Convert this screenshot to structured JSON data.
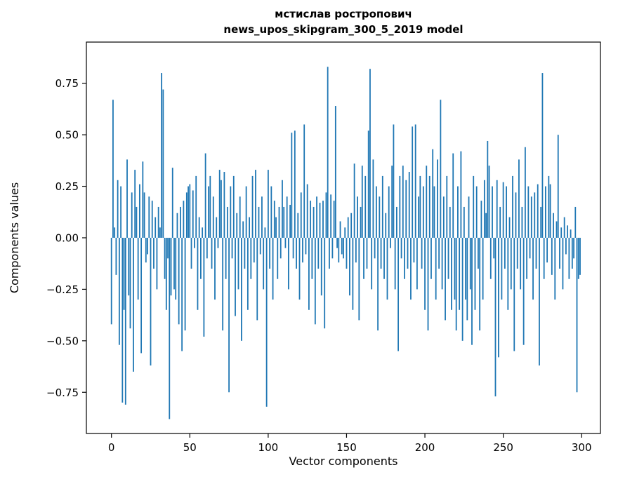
{
  "chart_data": {
    "type": "bar",
    "title": "мстислав ростропович\nnews_upos_skipgram_300_5_2019 model",
    "title_line1": "мстислав ростропович",
    "title_line2": "news_upos_skipgram_300_5_2019 model",
    "xlabel": "Vector components",
    "ylabel": "Components values",
    "bar_color": "#1f77b4",
    "grid": false,
    "legend_position": "none",
    "xlim": [
      -16,
      312
    ],
    "ylim": [
      -0.95,
      0.95
    ],
    "xticks": [
      0,
      50,
      100,
      150,
      200,
      250,
      300
    ],
    "xtick_labels": [
      "0",
      "50",
      "100",
      "150",
      "200",
      "250",
      "300"
    ],
    "yticks": [
      -0.75,
      -0.5,
      -0.25,
      0,
      0.25,
      0.5,
      0.75
    ],
    "ytick_labels": [
      "−0.75",
      "−0.50",
      "−0.25",
      "0.00",
      "0.25",
      "0.50",
      "0.75"
    ],
    "values": [
      -0.42,
      0.67,
      0.05,
      -0.18,
      0.28,
      -0.52,
      0.25,
      -0.8,
      -0.35,
      -0.81,
      0.38,
      -0.28,
      -0.44,
      0.22,
      -0.65,
      0.33,
      0.15,
      -0.3,
      0.26,
      -0.56,
      0.37,
      0.22,
      -0.12,
      -0.08,
      0.2,
      -0.62,
      0.18,
      -0.15,
      0.1,
      -0.25,
      0.15,
      0.05,
      0.8,
      0.72,
      -0.2,
      -0.35,
      -0.1,
      -0.88,
      -0.28,
      0.34,
      -0.25,
      -0.3,
      0.12,
      -0.42,
      0.15,
      -0.55,
      0.18,
      -0.45,
      0.22,
      0.25,
      0.26,
      -0.15,
      0.23,
      -0.05,
      0.3,
      -0.35,
      0.1,
      -0.2,
      0.05,
      -0.48,
      0.41,
      -0.1,
      0.25,
      0.3,
      -0.15,
      0.2,
      -0.3,
      0.1,
      -0.05,
      0.33,
      0.28,
      -0.45,
      0.32,
      -0.2,
      0.15,
      -0.75,
      0.25,
      -0.1,
      0.3,
      -0.38,
      0.12,
      -0.25,
      0.2,
      -0.5,
      0.08,
      -0.15,
      0.25,
      -0.35,
      0.1,
      -0.2,
      0.3,
      -0.12,
      0.33,
      -0.4,
      0.15,
      -0.08,
      0.2,
      -0.25,
      0.05,
      -0.82,
      0.33,
      -0.15,
      0.25,
      -0.3,
      0.18,
      0.1,
      -0.2,
      0.15,
      -0.1,
      0.28,
      0.15,
      -0.05,
      0.2,
      -0.25,
      0.16,
      0.51,
      -0.1,
      0.52,
      -0.15,
      0.12,
      -0.3,
      0.22,
      -0.12,
      0.55,
      -0.08,
      0.26,
      -0.35,
      0.18,
      -0.2,
      0.15,
      -0.42,
      0.2,
      -0.15,
      0.17,
      -0.28,
      0.18,
      -0.44,
      0.22,
      0.83,
      -0.15,
      0.21,
      -0.1,
      0.18,
      0.64,
      -0.05,
      -0.12,
      0.08,
      -0.08,
      -0.1,
      0.05,
      -0.15,
      0.1,
      -0.28,
      0.12,
      -0.35,
      0.36,
      -0.12,
      0.2,
      -0.4,
      0.15,
      0.35,
      -0.2,
      0.3,
      -0.15,
      0.52,
      0.82,
      -0.25,
      0.38,
      -0.1,
      0.25,
      -0.45,
      0.2,
      -0.15,
      0.3,
      -0.2,
      0.12,
      -0.3,
      0.25,
      -0.05,
      0.35,
      0.55,
      -0.25,
      0.15,
      -0.55,
      0.3,
      -0.1,
      0.35,
      -0.2,
      0.28,
      -0.15,
      0.32,
      -0.3,
      0.54,
      -0.12,
      0.55,
      -0.25,
      0.2,
      0.3,
      -0.15,
      0.25,
      -0.35,
      0.35,
      -0.45,
      0.3,
      -0.2,
      0.43,
      0.25,
      -0.3,
      0.38,
      -0.15,
      0.67,
      -0.25,
      0.2,
      -0.4,
      0.3,
      -0.2,
      0.15,
      -0.35,
      0.41,
      -0.3,
      -0.45,
      0.25,
      -0.35,
      0.42,
      -0.5,
      0.15,
      -0.3,
      -0.4,
      0.2,
      -0.25,
      -0.52,
      0.3,
      -0.35,
      0.25,
      -0.15,
      -0.45,
      0.18,
      -0.3,
      0.28,
      0.12,
      0.47,
      0.35,
      -0.2,
      0.25,
      -0.1,
      -0.77,
      0.28,
      -0.58,
      0.15,
      -0.3,
      0.27,
      -0.15,
      0.25,
      -0.35,
      0.1,
      -0.25,
      0.3,
      -0.55,
      0.22,
      -0.15,
      0.38,
      -0.25,
      0.15,
      -0.52,
      0.44,
      -0.2,
      0.25,
      -0.1,
      0.2,
      -0.3,
      0.22,
      -0.15,
      0.26,
      -0.62,
      0.15,
      0.8,
      -0.2,
      0.25,
      -0.12,
      0.3,
      0.26,
      -0.18,
      0.12,
      -0.3,
      0.08,
      0.5,
      -0.15,
      0.05,
      -0.25,
      0.1,
      -0.08,
      0.06,
      -0.2,
      0.04,
      -0.15,
      -0.1,
      0.15,
      -0.75,
      -0.2,
      -0.18
    ]
  }
}
